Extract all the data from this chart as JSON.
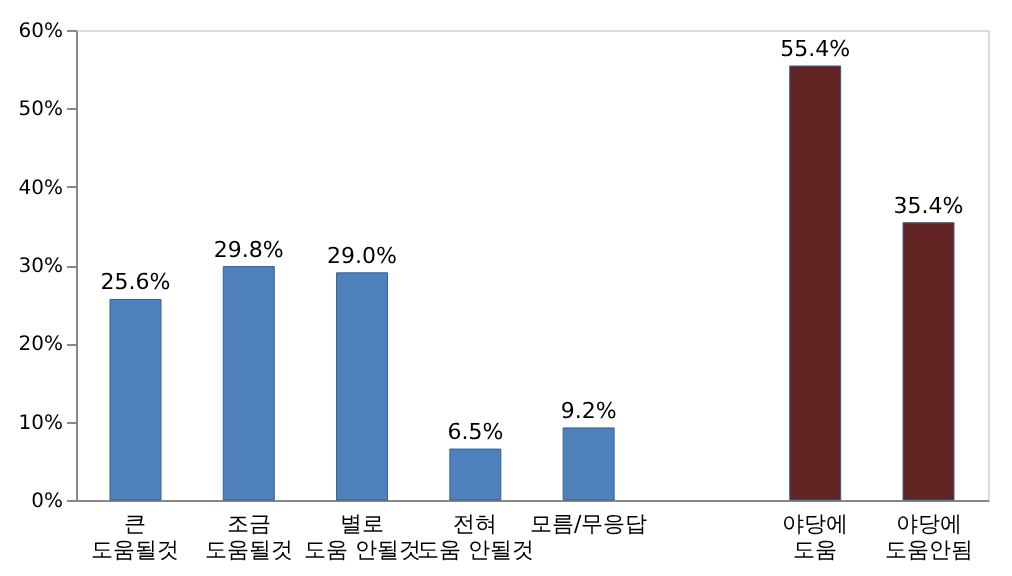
{
  "chart_data": {
    "type": "bar",
    "categories": [
      "큰\n도움될것",
      "조금\n도움될것",
      "별로\n도움 안될것",
      "전혀\n도움 안될것",
      "모름/무응답",
      null,
      "야당에\n도움",
      "야당에\n도움안됨"
    ],
    "values": [
      25.6,
      29.8,
      29.0,
      6.5,
      9.2,
      null,
      55.4,
      35.4
    ],
    "colors": [
      "#4f81bd",
      "#4f81bd",
      "#4f81bd",
      "#4f81bd",
      "#4f81bd",
      null,
      "#632523",
      "#632523"
    ],
    "value_labels": [
      "25.6%",
      "29.8%",
      "29.0%",
      "6.5%",
      "9.2%",
      null,
      "55.4%",
      "35.4%"
    ],
    "ylim": [
      0,
      60
    ],
    "yticks": [
      {
        "value": 0,
        "label": "0%"
      },
      {
        "value": 10,
        "label": "10%"
      },
      {
        "value": 20,
        "label": "20%"
      },
      {
        "value": 30,
        "label": "30%"
      },
      {
        "value": 40,
        "label": "40%"
      },
      {
        "value": 50,
        "label": "50%"
      },
      {
        "value": 60,
        "label": "60%"
      }
    ],
    "grid": false
  }
}
